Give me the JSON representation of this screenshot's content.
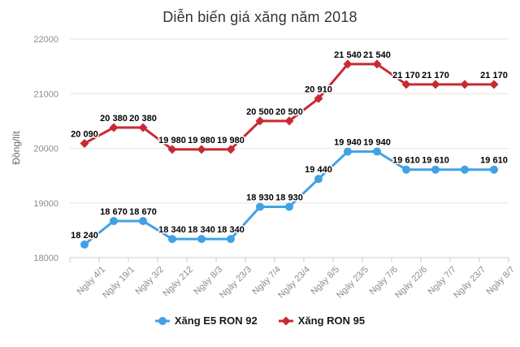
{
  "chart_data": {
    "type": "line",
    "title": "Diễn biến giá xăng năm 2018",
    "ylabel": "Đồng/lít",
    "ylim": [
      18000,
      22000
    ],
    "yticks": [
      18000,
      19000,
      20000,
      21000,
      22000
    ],
    "grid": true,
    "legend_position": "bottom",
    "categories": [
      "Ngày 4/1",
      "Ngày 19/1",
      "Ngày 3/2",
      "Ngày 212",
      "Ngày 8/3",
      "Ngày 23/3",
      "Ngày 7/4",
      "Ngày 23/4",
      "Ngày 8/5",
      "Ngày 23/5",
      "Ngày 7/6",
      "Ngày 22/6",
      "Ngày 7/7",
      "Ngày 23/7",
      "Ngày 8/7"
    ],
    "series": [
      {
        "name": "Xăng E5 RON 92",
        "color": "#41A1E5",
        "marker": "circle",
        "values": [
          18240,
          18670,
          18670,
          18340,
          18340,
          18340,
          18930,
          18930,
          19440,
          19940,
          19940,
          19610,
          19610,
          19610,
          19610
        ],
        "point_labels": [
          "18 240",
          "18 670",
          "18 670",
          "18 340",
          "18 340",
          "18 340",
          "18 930",
          "18 930",
          "19 440",
          "19 940",
          "19 940",
          "19 610",
          "19 610",
          "",
          "19 610"
        ]
      },
      {
        "name": "Xăng RON 95",
        "color": "#C62A33",
        "marker": "diamond",
        "values": [
          20090,
          20380,
          20380,
          19980,
          19980,
          19980,
          20500,
          20500,
          20910,
          21540,
          21540,
          21170,
          21170,
          21170,
          21170
        ],
        "point_labels": [
          "20 090",
          "20 380",
          "20 380",
          "19 980",
          "19 980",
          "19 980",
          "20 500",
          "20 500",
          "20 910",
          "21 540",
          "21 540",
          "21 170",
          "21 170",
          "",
          "21 170"
        ]
      }
    ],
    "colors": {
      "title": "#333333",
      "axis_labels": "#8c8c8c",
      "gridline": "#e6e6e6",
      "axis_line": "#cccccc",
      "data_label": "#000000",
      "background": "#ffffff"
    }
  }
}
